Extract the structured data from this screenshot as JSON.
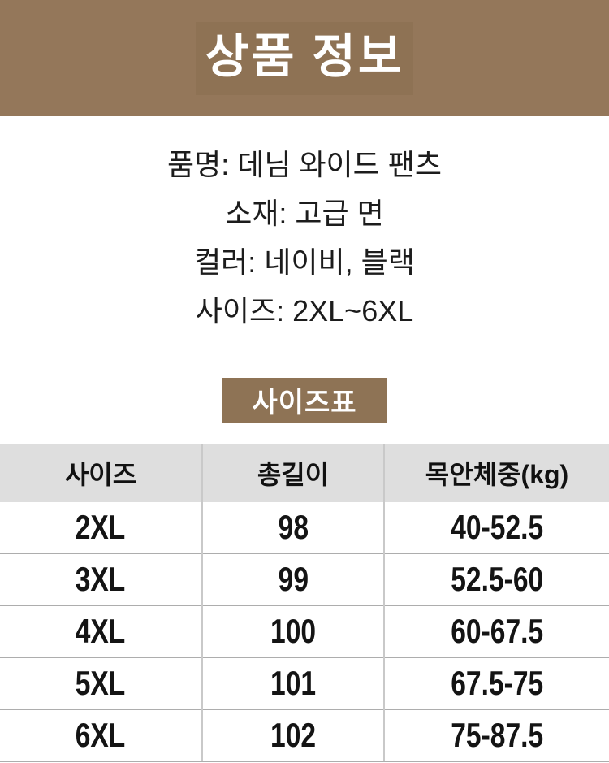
{
  "banner": {
    "title": "상품 정보"
  },
  "product_info": {
    "lines": [
      "품명: 데님 와이드 팬츠",
      "소재: 고급 면",
      "컬러: 네이비, 블랙",
      "사이즈: 2XL~6XL"
    ]
  },
  "size_chart_badge": {
    "label": "사이즈표"
  },
  "size_table": {
    "headers": [
      "사이즈",
      "총길이",
      "목안체중(kg)"
    ],
    "rows": [
      [
        "2XL",
        "98",
        "40-52.5"
      ],
      [
        "3XL",
        "99",
        "52.5-60"
      ],
      [
        "4XL",
        "100",
        "60-67.5"
      ],
      [
        "5XL",
        "101",
        "67.5-75"
      ],
      [
        "6XL",
        "102",
        "75-87.5"
      ]
    ]
  },
  "colors": {
    "banner_bg": "#94775A",
    "banner_title_box_bg": "#8E7254",
    "badge_bg": "#8E7355",
    "table_header_bg": "#DEDEDE",
    "row_divider": "#ADADAD",
    "column_divider": "#C9C9C9",
    "text": "#1C1C1C"
  }
}
